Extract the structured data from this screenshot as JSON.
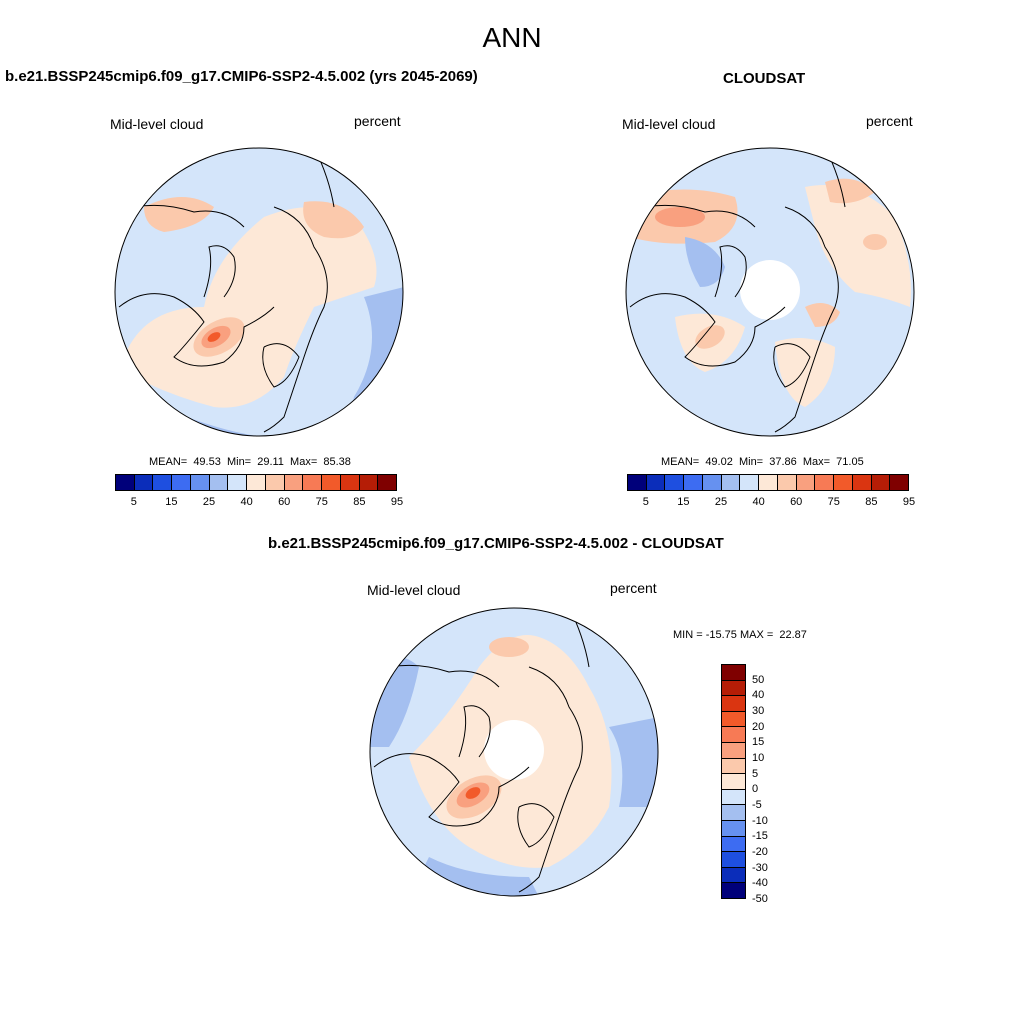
{
  "title": "ANN",
  "panels": {
    "left": {
      "title": "b.e21.BSSP245cmip6.f09_g17.CMIP6-SSP2-4.5.002 (yrs 2045-2069)",
      "var_label": "Mid-level cloud",
      "units": "percent",
      "stats": "MEAN=  49.53  Min=  29.11  Max=  85.38",
      "mean": 49.53,
      "min": 29.11,
      "max": 85.38
    },
    "right": {
      "title": "CLOUDSAT",
      "var_label": "Mid-level cloud",
      "units": "percent",
      "stats": "MEAN=  49.02  Min=  37.86  Max=  71.05",
      "mean": 49.02,
      "min": 37.86,
      "max": 71.05
    },
    "diff": {
      "title": "b.e21.BSSP245cmip6.f09_g17.CMIP6-SSP2-4.5.002 - CLOUDSAT",
      "var_label": "Mid-level cloud",
      "units": "percent",
      "stats": "MIN = -15.75 MAX =  22.87",
      "min": -15.75,
      "max": 22.87
    }
  },
  "colorbar": {
    "colors": [
      "#00007a",
      "#0b2dba",
      "#1e4fe0",
      "#3d6cf2",
      "#6691f0",
      "#a4bff0",
      "#d4e5fa",
      "#fde8d7",
      "#fbc9ac",
      "#f9a07f",
      "#f77a55",
      "#f25a2a",
      "#da3511",
      "#b51d06",
      "#7f0000"
    ],
    "labels": [
      "5",
      "15",
      "25",
      "40",
      "60",
      "75",
      "85",
      "95"
    ]
  },
  "diffbar": {
    "colors": [
      "#7f0000",
      "#b51d06",
      "#da3511",
      "#f25a2a",
      "#f77a55",
      "#f9a07f",
      "#fbc9ac",
      "#fde8d7",
      "#d4e5fa",
      "#a4bff0",
      "#6691f0",
      "#3d6cf2",
      "#1e4fe0",
      "#0b2dba",
      "#00007a"
    ],
    "labels": [
      "50",
      "40",
      "30",
      "20",
      "15",
      "10",
      "5",
      "0",
      "-5",
      "-10",
      "-15",
      "-20",
      "-30",
      "-40",
      "-50"
    ]
  },
  "map_colors": {
    "ocean_low": "#d4e5fa",
    "mid_blue": "#a4bff0",
    "land_high": "#fde8d7",
    "peach": "#fbc9ac",
    "orange": "#f9a07f",
    "red": "#f25a2a",
    "deep_red": "#da3511",
    "blue_deep": "#6691f0",
    "coast": "#000000"
  }
}
